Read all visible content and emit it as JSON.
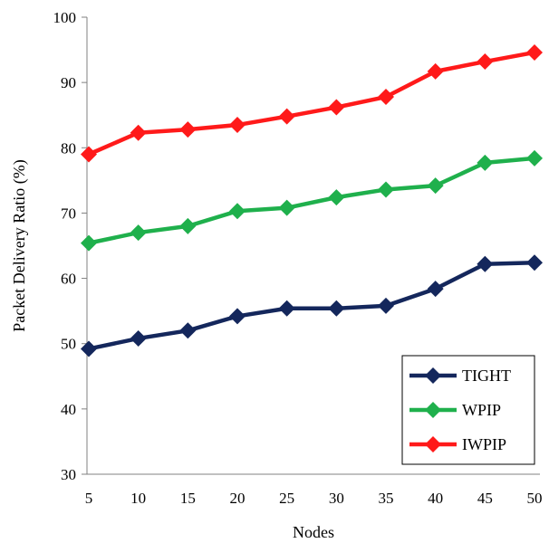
{
  "chart_data": {
    "type": "line",
    "title": "",
    "xlabel": "Nodes",
    "ylabel": "Packet Delivery  Ratio (%)",
    "x": [
      5,
      10,
      15,
      20,
      25,
      30,
      35,
      40,
      45,
      50
    ],
    "ylim": [
      30,
      100
    ],
    "yticks": [
      30,
      40,
      50,
      60,
      70,
      80,
      90,
      100
    ],
    "grid": false,
    "legend_position": "bottom-right",
    "series": [
      {
        "name": "TIGHT",
        "color": "#14275c",
        "marker": "diamond",
        "values": [
          49.2,
          50.8,
          52.0,
          54.2,
          55.4,
          55.4,
          55.8,
          58.4,
          62.2,
          62.4
        ]
      },
      {
        "name": "WPIP",
        "color": "#1fb04c",
        "marker": "diamond",
        "values": [
          65.4,
          67.0,
          68.0,
          70.3,
          70.8,
          72.4,
          73.6,
          74.2,
          77.7,
          78.4
        ]
      },
      {
        "name": "IWPIP",
        "color": "#ff1a1a",
        "marker": "diamond",
        "values": [
          79.0,
          82.3,
          82.8,
          83.5,
          84.8,
          86.2,
          87.8,
          91.7,
          93.2,
          94.6
        ]
      }
    ]
  }
}
